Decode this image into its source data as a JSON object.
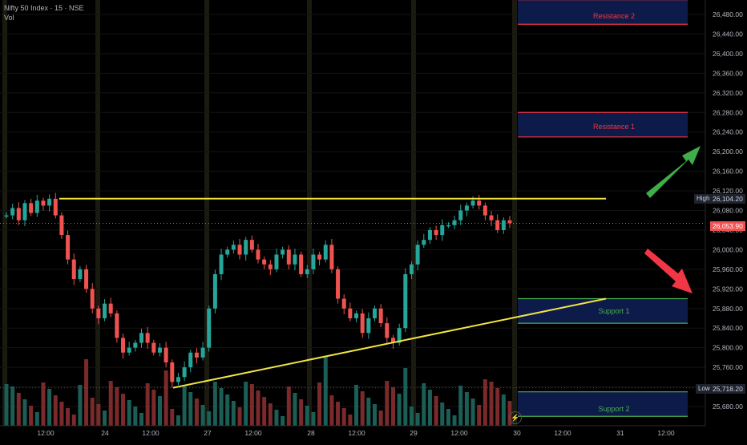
{
  "header": {
    "symbol": "Nifty 50 Index · 15 · NSE",
    "volume_label": "Vol"
  },
  "chart_data": {
    "type": "candlestick",
    "ylim": [
      25660,
      26520
    ],
    "y_ticks": [
      "26,480.00",
      "26,440.00",
      "26,400.00",
      "26,360.00",
      "26,320.00",
      "26,280.00",
      "26,240.00",
      "26,200.00",
      "26,160.00",
      "26,120.00",
      "26,080.00",
      "26,040.00",
      "26,000.00",
      "25,960.00",
      "25,920.00",
      "25,880.00",
      "25,840.00",
      "25,800.00",
      "25,760.00",
      "25,680.00"
    ],
    "x_ticks": [
      "12:00",
      "24",
      "12:00",
      "27",
      "12:00",
      "28",
      "12:00",
      "29",
      "12:00",
      "30",
      "12:00",
      "31",
      "12:00"
    ],
    "last_price": "26,053.90",
    "high": {
      "label": "High",
      "value": "26,104.20"
    },
    "low": {
      "label": "Low",
      "value": "25,718.20"
    },
    "price_path": [
      26070,
      26085,
      26060,
      26095,
      26075,
      26100,
      26090,
      26104,
      26070,
      26030,
      25980,
      25940,
      25960,
      25920,
      25880,
      25860,
      25890,
      25870,
      25820,
      25790,
      25800,
      25810,
      25830,
      25810,
      25790,
      25800,
      25770,
      25730,
      25740,
      25760,
      25790,
      25780,
      25800,
      25880,
      25950,
      25990,
      26000,
      26010,
      25990,
      26020,
      26000,
      25980,
      25970,
      25960,
      25990,
      26000,
      25970,
      25990,
      25950,
      25960,
      25990,
      25980,
      26010,
      25960,
      25900,
      25880,
      25860,
      25870,
      25830,
      25860,
      25880,
      25850,
      25820,
      25810,
      25840,
      25950,
      25970,
      26010,
      26020,
      26040,
      26030,
      26050,
      26050,
      26060,
      26080,
      26090,
      26100,
      26090,
      26070,
      26060,
      26040,
      26060,
      26054
    ],
    "zones": [
      {
        "name": "Resistance 2",
        "top": 26510,
        "bottom": 26460,
        "kind": "resistance"
      },
      {
        "name": "Resistance 1",
        "top": 26280,
        "bottom": 26230,
        "kind": "resistance"
      },
      {
        "name": "Support 1",
        "top": 25900,
        "bottom": 25850,
        "kind": "support"
      },
      {
        "name": "Support 2",
        "top": 25710,
        "bottom": 25660,
        "kind": "support"
      }
    ],
    "annotations": {
      "horizontal_line_level": 26104.2,
      "trendline_from": 25718.2,
      "trendline_to": 25900,
      "arrow_up": "green",
      "arrow_down": "red"
    }
  },
  "colors": {
    "up": "#26a69a",
    "down": "#ef5350",
    "yellow": "#f0e442",
    "resistance_border": "#f23645",
    "support_border": "#4caf50",
    "zone_fill": "#0d1b4a"
  },
  "icons": {
    "scroll_to_realtime": "lightning-icon"
  }
}
